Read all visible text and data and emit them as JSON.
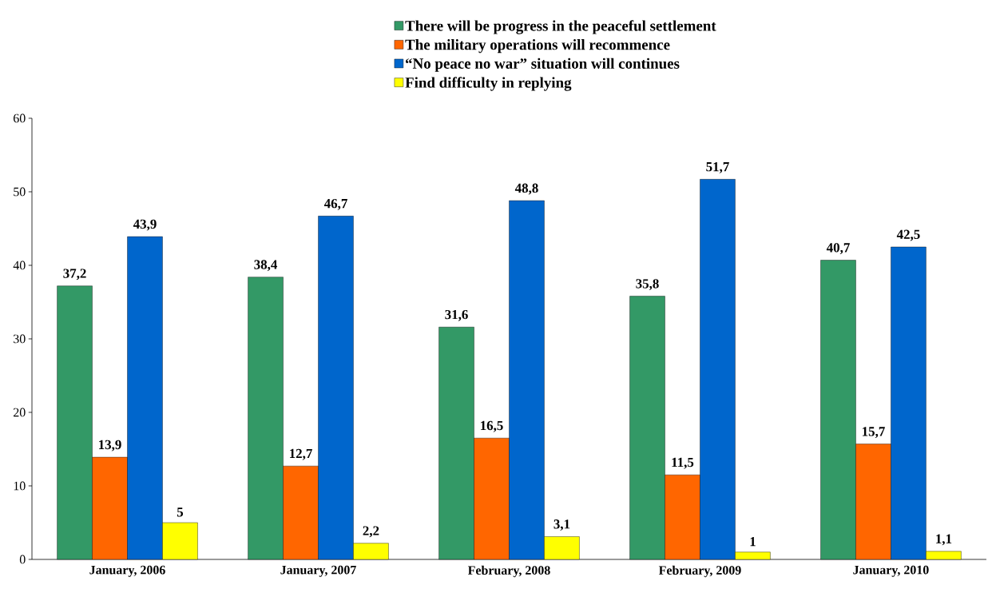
{
  "chart_data": {
    "type": "bar",
    "categories": [
      "January, 2006",
      "January, 2007",
      "February, 2008",
      "February, 2009",
      "January, 2010"
    ],
    "series": [
      {
        "name": "There will be progress in the peaceful settlement",
        "color": "#339966",
        "values": [
          37.2,
          38.4,
          31.6,
          35.8,
          40.7
        ],
        "value_labels": [
          "37,2",
          "38,4",
          "31,6",
          "35,8",
          "40,7"
        ]
      },
      {
        "name": "The military operations will recommence",
        "color": "#ff6600",
        "values": [
          13.9,
          12.7,
          16.5,
          11.5,
          15.7
        ],
        "value_labels": [
          "13,9",
          "12,7",
          "16,5",
          "11,5",
          "15,7"
        ]
      },
      {
        "name": "“No peace no war” situation will continues",
        "color": "#0066cc",
        "values": [
          43.9,
          46.7,
          48.8,
          51.7,
          42.5
        ],
        "value_labels": [
          "43,9",
          "46,7",
          "48,8",
          "51,7",
          "42,5"
        ]
      },
      {
        "name": "Find difficulty in replying",
        "color": "#ffff00",
        "values": [
          5,
          2.2,
          3.1,
          1,
          1.1
        ],
        "value_labels": [
          "5",
          "2,2",
          "3,1",
          "1",
          "1,1"
        ]
      }
    ],
    "ylim": [
      0,
      60
    ],
    "yticks": [
      0,
      10,
      20,
      30,
      40,
      50,
      60
    ],
    "legend": "top"
  }
}
